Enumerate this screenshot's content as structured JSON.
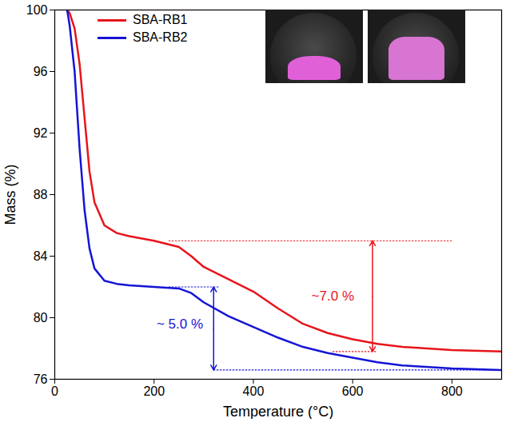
{
  "chart_data": {
    "type": "line",
    "x_label": "Temperature (°C)",
    "y_label": "Mass (%)",
    "x": [
      25,
      30,
      40,
      50,
      60,
      70,
      80,
      100,
      125,
      150,
      200,
      250,
      275,
      300,
      350,
      400,
      450,
      500,
      550,
      600,
      650,
      700,
      800,
      900
    ],
    "series": [
      {
        "name": "SBA-RB1",
        "color": "#e8141b",
        "values": [
          100,
          99.8,
          98.8,
          96.5,
          93,
          89.5,
          87.5,
          86,
          85.5,
          85.3,
          85,
          84.6,
          84,
          83.3,
          82.5,
          81.7,
          80.6,
          79.6,
          79,
          78.6,
          78.3,
          78.1,
          77.9,
          77.8
        ]
      },
      {
        "name": "SBA-RB2",
        "color": "#1414d6",
        "values": [
          100,
          99,
          96,
          91,
          87,
          84.5,
          83.2,
          82.4,
          82.2,
          82.1,
          82,
          81.9,
          81.6,
          81,
          80.1,
          79.4,
          78.7,
          78.1,
          77.7,
          77.4,
          77.1,
          76.9,
          76.7,
          76.6
        ]
      }
    ],
    "xlim": [
      0,
      900
    ],
    "xticks": [
      0,
      200,
      400,
      600,
      800
    ],
    "ylim": [
      76,
      100
    ],
    "yticks": [
      76,
      80,
      84,
      88,
      92,
      96,
      100
    ],
    "legend": "top-left",
    "annotations": [
      {
        "text": "~7.0 %",
        "color": "#e8141b",
        "text_x": 560,
        "text_y": 81.4,
        "arrow_x": 640,
        "upper": {
          "y": 85,
          "x": [
            230,
            800
          ]
        },
        "lower": {
          "y": 77.8,
          "x": [
            560,
            650
          ]
        }
      },
      {
        "text": "~ 5.0 %",
        "color": "#1414d6",
        "text_x": 252,
        "text_y": 79.6,
        "arrow_x": 320,
        "upper": {
          "y": 82,
          "x": [
            230,
            330
          ]
        },
        "lower": {
          "y": 76.6,
          "x": [
            320,
            900
          ]
        }
      }
    ]
  }
}
